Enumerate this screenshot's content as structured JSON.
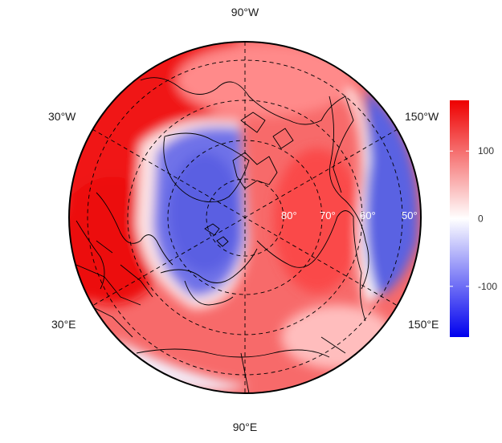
{
  "map": {
    "projection": "north-polar-stereographic",
    "longitude_labels": {
      "top": "90°W",
      "upper_left": "30°W",
      "upper_right": "150°W",
      "lower_left": "30°E",
      "lower_right": "150°E",
      "bottom": "90°E"
    },
    "latitude_labels": [
      "80°",
      "70°",
      "60°",
      "50°"
    ],
    "field": {
      "description": "anomaly field over the Arctic with a blue (negative) lobe over Greenland/Canadian Arctic to Europe-Arctic and over the Alaska/Bering sector, red (positive) elsewhere",
      "palette": {
        "low": "#0000ee",
        "mid": "#ffffff",
        "high": "#ee0000"
      }
    },
    "colorbar": {
      "ticks": [
        {
          "label": "100",
          "value": 100
        },
        {
          "label": "0",
          "value": 0
        },
        {
          "label": "-100",
          "value": -100
        }
      ],
      "min": -175,
      "max": 175
    }
  }
}
